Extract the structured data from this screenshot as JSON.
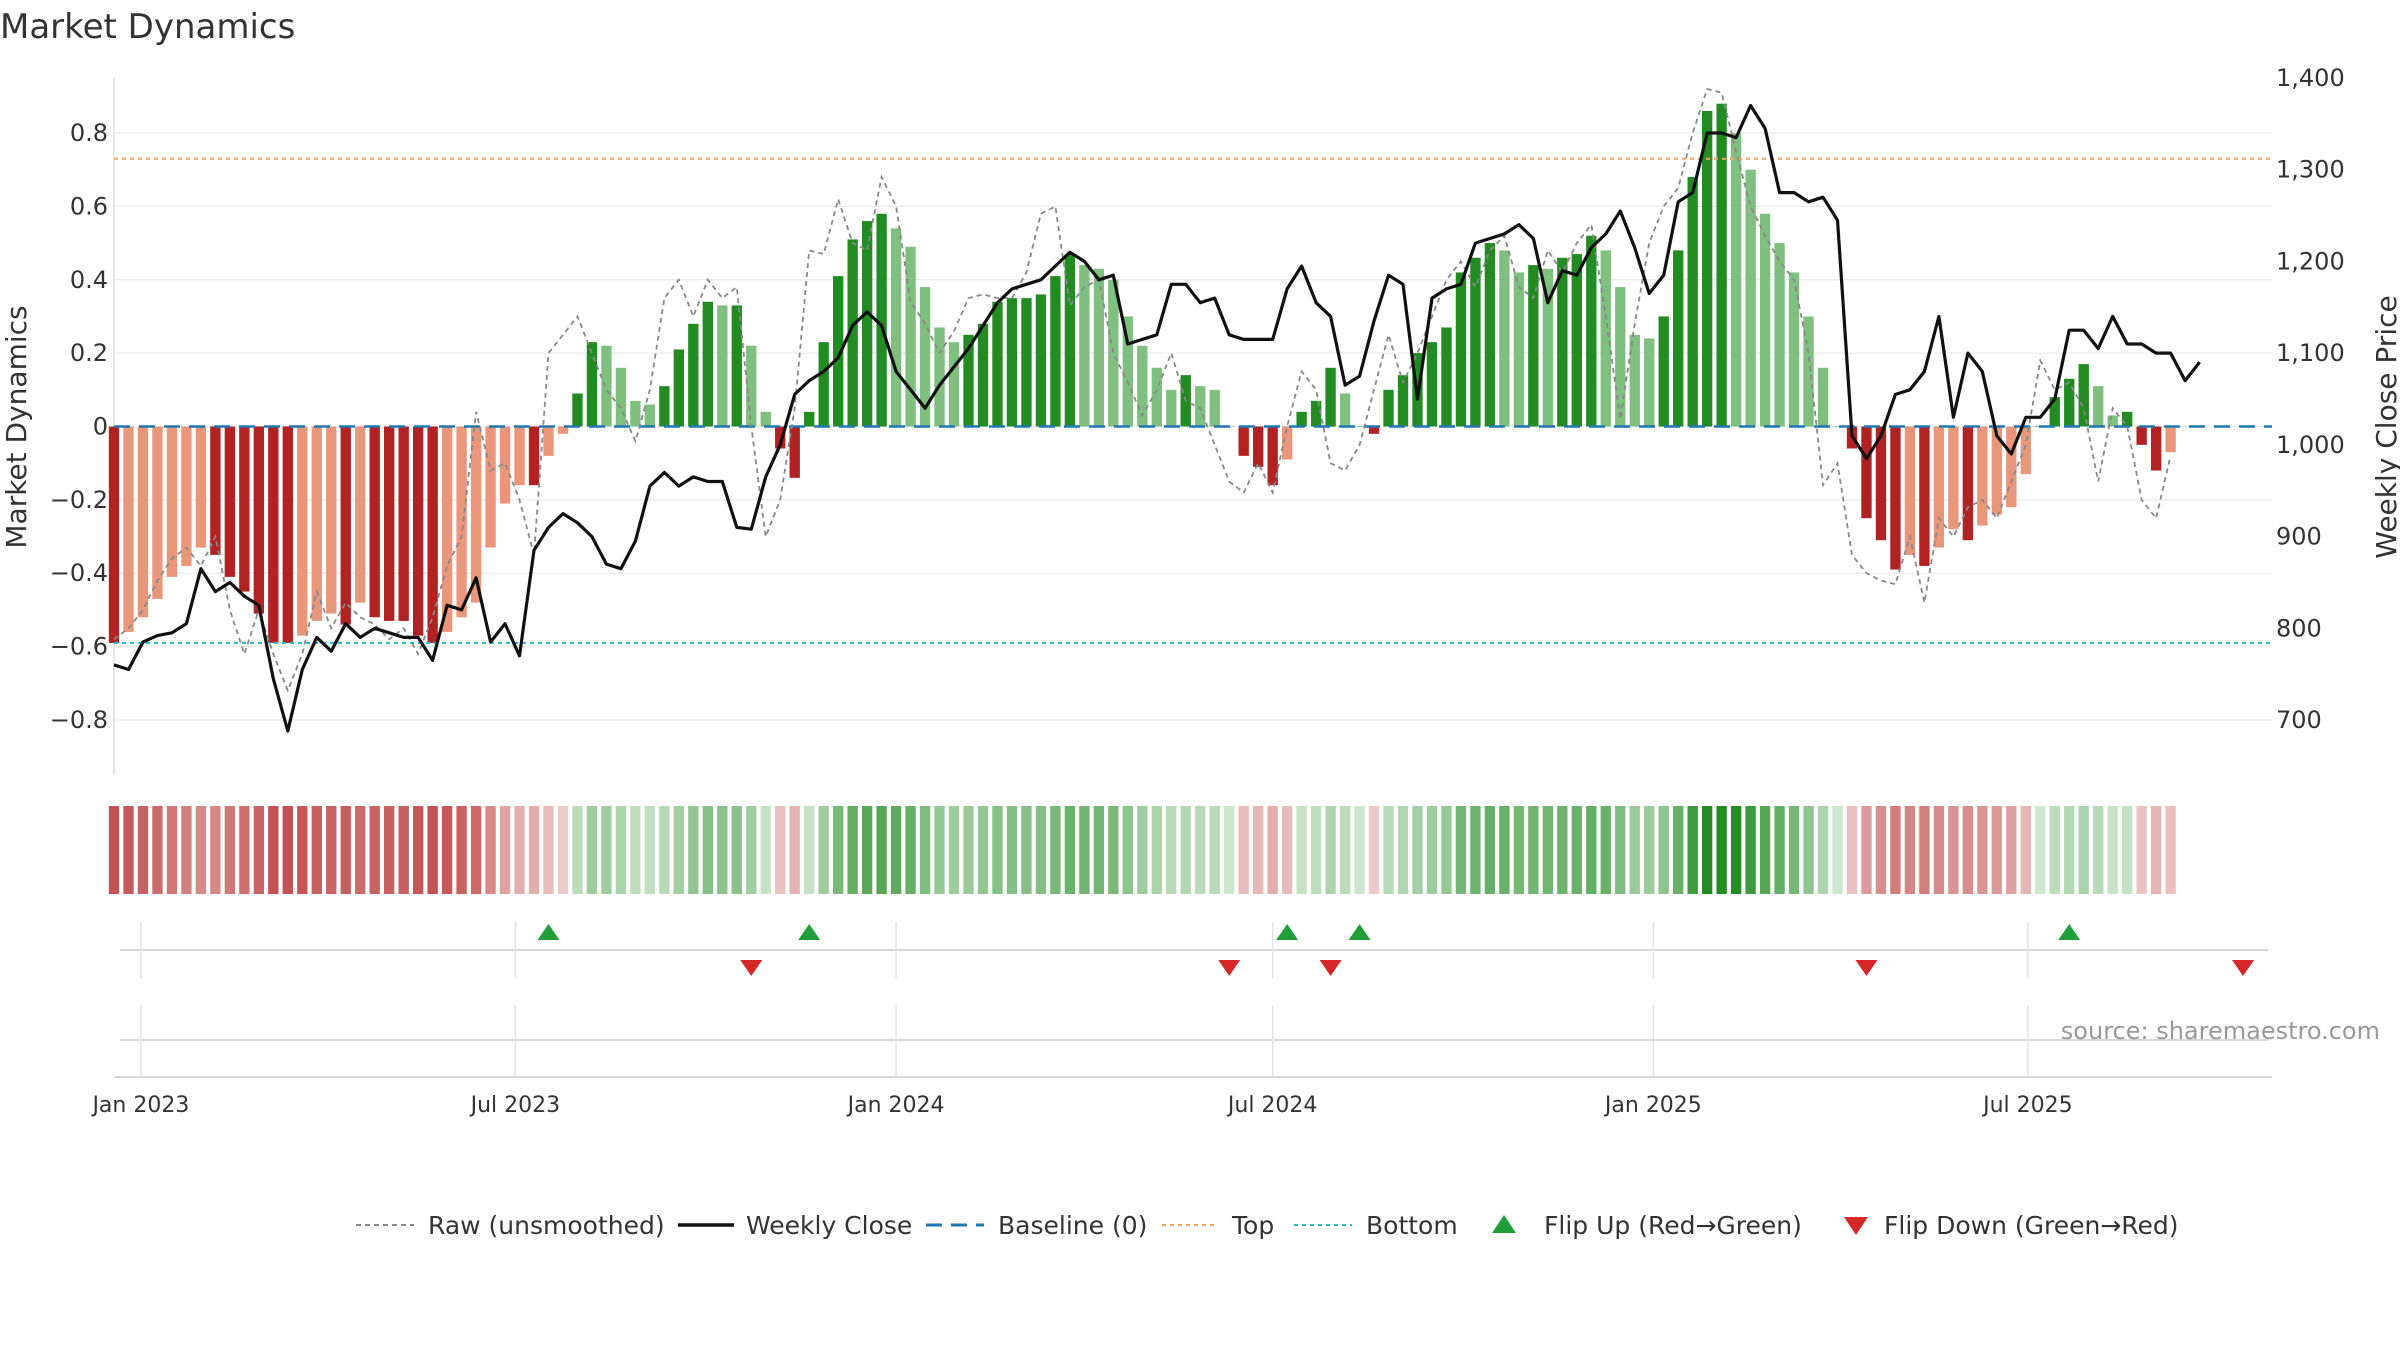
{
  "chart_data": {
    "type": "bar",
    "title": "Market Dynamics",
    "source": "source: sharemaestro.com",
    "ylabel_left": "Market Dynamics",
    "ylabel_right": "Weekly Close Price",
    "ylim_left": [
      -0.95,
      0.95
    ],
    "ylim_right": [
      640,
      1400
    ],
    "yticks_left": [
      -0.8,
      -0.6,
      -0.4,
      -0.2,
      0,
      0.2,
      0.4,
      0.6,
      0.8
    ],
    "yticks_left_labels": [
      "−0.8",
      "−0.6",
      "−0.4",
      "−0.2",
      "0",
      "0.2",
      "0.4",
      "0.6",
      "0.8"
    ],
    "yticks_right": [
      700,
      800,
      900,
      1000,
      1100,
      1200,
      1300,
      1400
    ],
    "yticks_right_labels": [
      "700",
      "800",
      "900",
      "1,000",
      "1,100",
      "1,200",
      "1,300",
      "1,400"
    ],
    "x_start": "2022-12-19",
    "x_end": "2025-10-27",
    "bar_width_days": 5,
    "first_week": "2022-12-19",
    "x_ticks": [
      {
        "date": "2023-01-01",
        "label": "Jan 2023"
      },
      {
        "date": "2023-07-01",
        "label": "Jul 2023"
      },
      {
        "date": "2024-01-01",
        "label": "Jan 2024"
      },
      {
        "date": "2024-07-01",
        "label": "Jul 2024"
      },
      {
        "date": "2025-01-01",
        "label": "Jan 2025"
      },
      {
        "date": "2025-07-01",
        "label": "Jul 2025"
      }
    ],
    "top_level": 0.73,
    "bottom_level": -0.59,
    "baseline": 0,
    "dynamics": [
      -0.59,
      -0.56,
      -0.52,
      -0.47,
      -0.41,
      -0.38,
      -0.33,
      -0.35,
      -0.41,
      -0.45,
      -0.51,
      -0.59,
      -0.59,
      -0.57,
      -0.53,
      -0.51,
      -0.54,
      -0.48,
      -0.52,
      -0.53,
      -0.53,
      -0.57,
      -0.59,
      -0.56,
      -0.52,
      -0.48,
      -0.33,
      -0.21,
      -0.16,
      -0.16,
      -0.08,
      -0.02,
      0.09,
      0.23,
      0.22,
      0.16,
      0.07,
      0.06,
      0.11,
      0.21,
      0.28,
      0.34,
      0.33,
      0.33,
      0.22,
      0.04,
      -0.06,
      -0.14,
      0.04,
      0.23,
      0.41,
      0.51,
      0.56,
      0.58,
      0.54,
      0.49,
      0.38,
      0.27,
      0.23,
      0.25,
      0.28,
      0.34,
      0.35,
      0.35,
      0.36,
      0.41,
      0.47,
      0.44,
      0.43,
      0.4,
      0.3,
      0.22,
      0.16,
      0.1,
      0.14,
      0.11,
      0.1,
      0.0,
      -0.08,
      -0.11,
      -0.16,
      -0.09,
      0.04,
      0.07,
      0.16,
      0.09,
      0.0,
      -0.02,
      0.1,
      0.14,
      0.2,
      0.23,
      0.27,
      0.42,
      0.46,
      0.5,
      0.48,
      0.42,
      0.44,
      0.43,
      0.46,
      0.47,
      0.52,
      0.48,
      0.38,
      0.25,
      0.24,
      0.3,
      0.48,
      0.68,
      0.86,
      0.88,
      0.8,
      0.7,
      0.58,
      0.5,
      0.42,
      0.3,
      0.16,
      0.0,
      -0.06,
      -0.25,
      -0.31,
      -0.39,
      -0.35,
      -0.38,
      -0.33,
      -0.28,
      -0.31,
      -0.27,
      -0.24,
      -0.22,
      -0.13,
      0.0,
      0.08,
      0.13,
      0.17,
      0.11,
      0.03,
      0.04,
      -0.05,
      -0.12,
      -0.07
    ],
    "raw": [
      -0.58,
      -0.55,
      -0.5,
      -0.42,
      -0.36,
      -0.33,
      -0.38,
      -0.3,
      -0.5,
      -0.62,
      -0.5,
      -0.62,
      -0.72,
      -0.62,
      -0.45,
      -0.55,
      -0.48,
      -0.52,
      -0.54,
      -0.58,
      -0.55,
      -0.62,
      -0.52,
      -0.38,
      -0.3,
      0.04,
      -0.12,
      -0.1,
      -0.2,
      -0.35,
      0.2,
      0.25,
      0.3,
      0.2,
      0.1,
      0.05,
      -0.04,
      0.1,
      0.35,
      0.4,
      0.3,
      0.4,
      0.35,
      0.38,
      0.0,
      -0.3,
      -0.2,
      0.05,
      0.48,
      0.47,
      0.62,
      0.5,
      0.48,
      0.68,
      0.6,
      0.34,
      0.28,
      0.2,
      0.26,
      0.35,
      0.36,
      0.35,
      0.35,
      0.42,
      0.58,
      0.6,
      0.33,
      0.38,
      0.4,
      0.2,
      0.12,
      0.03,
      0.1,
      0.2,
      0.07,
      0.05,
      -0.05,
      -0.15,
      -0.18,
      -0.1,
      -0.18,
      0.0,
      0.15,
      0.1,
      -0.1,
      -0.12,
      -0.05,
      0.1,
      0.25,
      0.12,
      0.2,
      0.3,
      0.4,
      0.45,
      0.38,
      0.48,
      0.52,
      0.38,
      0.35,
      0.48,
      0.42,
      0.5,
      0.55,
      0.3,
      0.02,
      0.28,
      0.5,
      0.6,
      0.65,
      0.8,
      0.92,
      0.91,
      0.75,
      0.6,
      0.52,
      0.45,
      0.4,
      0.2,
      -0.16,
      -0.1,
      -0.35,
      -0.4,
      -0.42,
      -0.43,
      -0.3,
      -0.48,
      -0.25,
      -0.3,
      -0.22,
      -0.2,
      -0.25,
      -0.15,
      -0.05,
      0.18,
      0.1,
      0.12,
      0.05,
      -0.15,
      0.05,
      0.0,
      -0.2,
      -0.25,
      -0.08
    ],
    "close": [
      760,
      755,
      785,
      792,
      795,
      805,
      865,
      840,
      850,
      835,
      825,
      745,
      688,
      755,
      790,
      775,
      805,
      790,
      800,
      795,
      790,
      790,
      765,
      825,
      820,
      855,
      785,
      805,
      770,
      885,
      910,
      925,
      915,
      900,
      870,
      865,
      895,
      955,
      970,
      955,
      965,
      960,
      960,
      910,
      908,
      965,
      1000,
      1055,
      1070,
      1080,
      1095,
      1130,
      1145,
      1130,
      1080,
      1060,
      1040,
      1065,
      1085,
      1105,
      1130,
      1155,
      1170,
      1175,
      1180,
      1195,
      1210,
      1200,
      1180,
      1185,
      1110,
      1115,
      1120,
      1175,
      1175,
      1155,
      1160,
      1120,
      1115,
      1115,
      1115,
      1170,
      1195,
      1155,
      1140,
      1065,
      1075,
      1135,
      1185,
      1175,
      1050,
      1160,
      1170,
      1175,
      1220,
      1225,
      1230,
      1240,
      1225,
      1155,
      1190,
      1185,
      1215,
      1230,
      1255,
      1215,
      1165,
      1185,
      1265,
      1275,
      1340,
      1340,
      1335,
      1370,
      1345,
      1275,
      1275,
      1265,
      1270,
      1245,
      1010,
      985,
      1010,
      1055,
      1060,
      1080,
      1140,
      1030,
      1100,
      1080,
      1010,
      990,
      1030,
      1030,
      1050,
      1125,
      1125,
      1105,
      1140,
      1110,
      1110,
      1100,
      1100,
      1070,
      1090
    ],
    "flip_up": [
      "2023-07-17",
      "2023-11-20",
      "2024-07-08",
      "2024-08-12",
      "2025-07-21"
    ],
    "flip_down": [
      "2023-10-23",
      "2024-06-10",
      "2024-07-29",
      "2025-04-14",
      "2025-10-13"
    ],
    "legend": [
      {
        "label": "Raw (unsmoothed)",
        "symbol": "dotted-gray-line"
      },
      {
        "label": "Weekly Close",
        "symbol": "solid-black-line"
      },
      {
        "label": "Baseline (0)",
        "symbol": "dashed-blue-line"
      },
      {
        "label": "Top",
        "symbol": "dotted-orange-line"
      },
      {
        "label": "Bottom",
        "symbol": "dotted-cyan-line"
      },
      {
        "label": "Flip Up (Red→Green)",
        "symbol": "green-up-triangle"
      },
      {
        "label": "Flip Down (Green→Red)",
        "symbol": "red-down-triangle"
      }
    ],
    "legend_position": "bottom-center",
    "grid": true
  },
  "colors": {
    "strong_green": "#228B22",
    "light_green": "#7FBF7F",
    "strong_red": "#B22222",
    "light_red": "#E9967A",
    "close_line": "#111111",
    "raw_line": "#888888",
    "baseline": "#1F77B4",
    "top": "#F4A460",
    "bottom": "#17BECF",
    "flip_up": "#1F9E3A",
    "flip_down": "#D62728",
    "grid": "#E6E6E6",
    "text": "#333333"
  }
}
